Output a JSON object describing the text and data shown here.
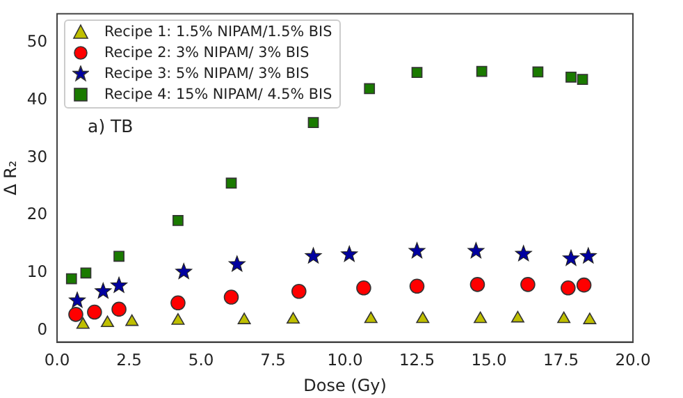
{
  "chart_data": {
    "type": "scatter",
    "xlabel": "Dose (Gy)",
    "ylabel": "Δ R₂",
    "annotations": [
      "a) TB"
    ],
    "xlim": [
      0,
      20
    ],
    "xticks": [
      {
        "value": 0,
        "label": "0.0"
      },
      {
        "value": 2.5,
        "label": "2.5"
      },
      {
        "value": 5,
        "label": "5.0"
      },
      {
        "value": 7.5,
        "label": "7.5"
      },
      {
        "value": 10,
        "label": "10.0"
      },
      {
        "value": 12.5,
        "label": "12.5"
      },
      {
        "value": 15,
        "label": "15.0"
      },
      {
        "value": 17.5,
        "label": "17.5"
      },
      {
        "value": 20,
        "label": "20.0"
      }
    ],
    "ylim": [
      -2,
      55
    ],
    "yticks": [
      0,
      10,
      20,
      30,
      40,
      50
    ],
    "grid": false,
    "legend": "top left",
    "series": [
      {
        "name": "Recipe 1: 1.5% NIPAM/1.5% BIS",
        "color": "#bfbf00",
        "marker": "triangle",
        "x": [
          0.9,
          1.75,
          2.6,
          4.2,
          6.5,
          8.2,
          10.9,
          12.7,
          14.7,
          16.0,
          17.6,
          18.5
        ],
        "values": [
          1.0,
          1.3,
          1.5,
          1.7,
          1.8,
          1.9,
          2.0,
          2.0,
          2.0,
          2.1,
          2.0,
          1.8
        ]
      },
      {
        "name": "Recipe 2: 3% NIPAM/ 3% BIS",
        "color": "#ff0000",
        "marker": "circle",
        "x": [
          0.65,
          1.3,
          2.15,
          4.2,
          6.05,
          8.4,
          10.65,
          12.5,
          14.6,
          16.35,
          17.75,
          18.3
        ],
        "values": [
          2.8,
          3.2,
          3.7,
          4.8,
          5.8,
          6.8,
          7.4,
          7.7,
          8.0,
          8.0,
          7.4,
          7.9
        ]
      },
      {
        "name": "Recipe 3: 5% NIPAM/ 3% BIS",
        "color": "#0000a0",
        "marker": "star",
        "x": [
          0.7,
          1.6,
          2.15,
          4.4,
          6.25,
          8.9,
          10.15,
          12.5,
          14.55,
          16.2,
          17.85,
          18.45
        ],
        "values": [
          5.2,
          6.8,
          7.8,
          10.2,
          11.5,
          12.9,
          13.2,
          13.8,
          13.8,
          13.3,
          12.5,
          12.9
        ]
      },
      {
        "name": "Recipe 4: 15% NIPAM/ 4.5% BIS",
        "color": "#1a7a00",
        "marker": "square",
        "x": [
          0.5,
          1.0,
          2.15,
          4.2,
          6.05,
          8.9,
          10.85,
          12.5,
          14.75,
          16.7,
          17.85,
          18.25
        ],
        "values": [
          9.0,
          10.0,
          12.9,
          19.1,
          25.6,
          36.1,
          42.0,
          44.8,
          45.0,
          44.9,
          44.0,
          43.6
        ]
      }
    ]
  }
}
